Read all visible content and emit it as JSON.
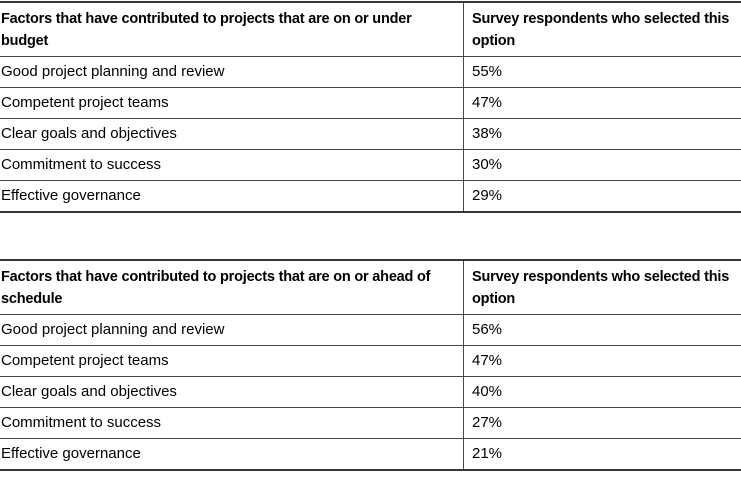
{
  "page": {
    "background": "#ffffff",
    "text_color": "#000000",
    "border_color": "#474747",
    "outer_border_color": "#383838"
  },
  "tables": [
    {
      "name": "budget-factors",
      "header": {
        "factor_label": "Factors that have contributed to projects that are on or under budget",
        "value_label": "Survey respondents who selected this option"
      },
      "rows": [
        {
          "factor": "Good project planning and review",
          "value": "55%"
        },
        {
          "factor": "Competent project teams",
          "value": "47%"
        },
        {
          "factor": "Clear goals and objectives",
          "value": "38%"
        },
        {
          "factor": "Commitment to success",
          "value": "30%"
        },
        {
          "factor": "Effective governance",
          "value": "29%"
        }
      ]
    },
    {
      "name": "schedule-factors",
      "header": {
        "factor_label": "Factors that have contributed to projects that are on or ahead of schedule",
        "value_label": "Survey respondents who selected this option"
      },
      "rows": [
        {
          "factor": "Good project planning and review",
          "value": "56%"
        },
        {
          "factor": "Competent project teams",
          "value": "47%"
        },
        {
          "factor": "Clear goals and objectives",
          "value": "40%"
        },
        {
          "factor": "Commitment to success",
          "value": "27%"
        },
        {
          "factor": "Effective governance",
          "value": "21%"
        }
      ]
    }
  ]
}
